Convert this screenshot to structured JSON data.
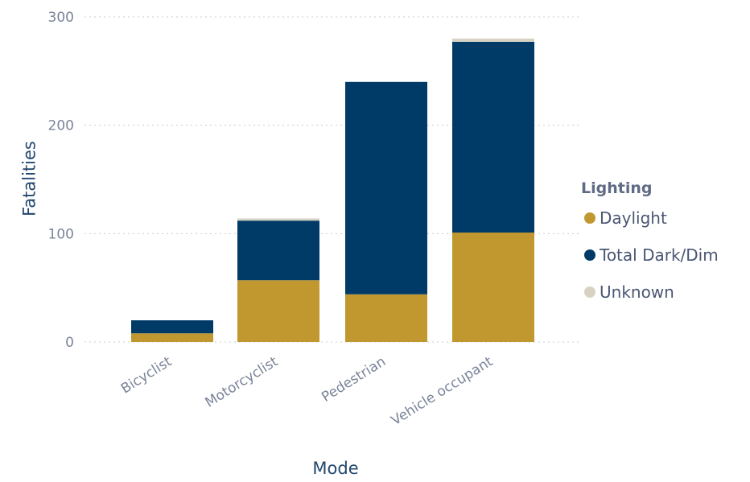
{
  "chart_data": {
    "type": "bar",
    "stacked": true,
    "categories": [
      "Bicyclist",
      "Motorcyclist",
      "Pedestrian",
      "Vehicle occupant"
    ],
    "series": [
      {
        "name": "Daylight",
        "color": "#c0982f",
        "values": [
          8,
          57,
          44,
          101
        ]
      },
      {
        "name": "Total Dark/Dim",
        "color": "#003a66",
        "values": [
          12,
          55,
          196,
          176
        ]
      },
      {
        "name": "Unknown",
        "color": "#d8d2c4",
        "values": [
          0,
          2,
          0,
          3
        ]
      }
    ],
    "xlabel": "Mode",
    "ylabel": "Fatalities",
    "ylim": [
      0,
      300
    ],
    "yticks": [
      0,
      100,
      200,
      300
    ],
    "grid": "horizontal-dotted",
    "legend": {
      "title": "Lighting",
      "placement": "right"
    }
  }
}
